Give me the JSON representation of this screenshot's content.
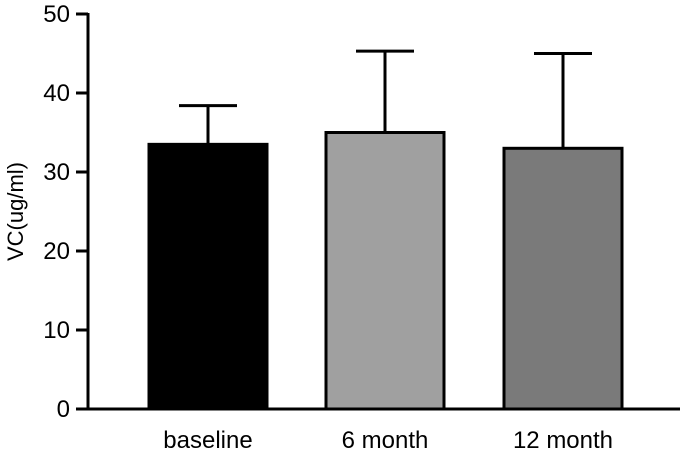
{
  "chart_data": {
    "type": "bar",
    "title": "",
    "xlabel": "",
    "ylabel": "VC(ug/ml)",
    "ylim": [
      0,
      50
    ],
    "yticks": [
      0,
      10,
      20,
      30,
      40,
      50
    ],
    "categories": [
      "baseline",
      "6 month",
      "12 month"
    ],
    "values": [
      33.5,
      35,
      33
    ],
    "error_upper": [
      38.4,
      45.3,
      45
    ],
    "bar_colors": [
      "#000000",
      "#a0a0a0",
      "#7a7a7a"
    ],
    "grid": false,
    "legend": "none"
  }
}
